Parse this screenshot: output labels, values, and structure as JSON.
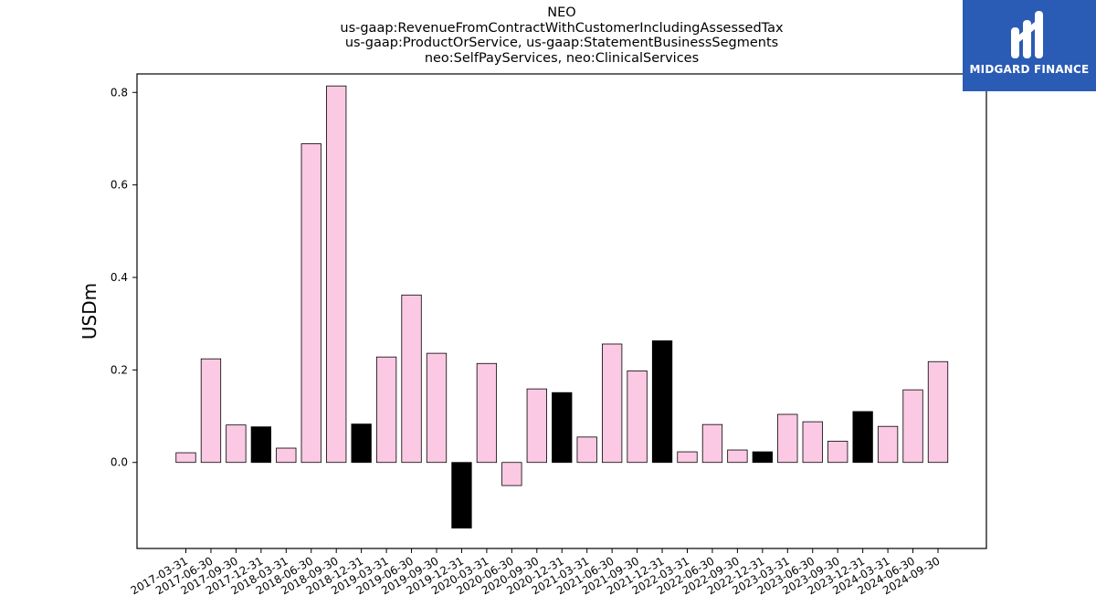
{
  "chart_data": {
    "type": "bar",
    "title_lines": [
      "NEO",
      "us-gaap:RevenueFromContractWithCustomerIncludingAssessedTax",
      "us-gaap:ProductOrService, us-gaap:StatementBusinessSegments",
      "neo:SelfPayServices, neo:ClinicalServices"
    ],
    "xlabel": "",
    "ylabel": "USDm",
    "ylim": [
      -0.186,
      0.84
    ],
    "yticks": [
      0.0,
      0.2,
      0.4,
      0.6,
      0.8
    ],
    "ytick_labels": [
      "0.0",
      "0.2",
      "0.4",
      "0.6",
      "0.8"
    ],
    "grid": false,
    "categories": [
      "2017-03-31",
      "2017-06-30",
      "2017-09-30",
      "2017-12-31",
      "2018-03-31",
      "2018-06-30",
      "2018-09-30",
      "2018-12-31",
      "2019-03-31",
      "2019-06-30",
      "2019-09-30",
      "2019-12-31",
      "2020-03-31",
      "2020-06-30",
      "2020-09-30",
      "2020-12-31",
      "2021-03-31",
      "2021-06-30",
      "2021-09-30",
      "2021-12-31",
      "2022-03-31",
      "2022-06-30",
      "2022-09-30",
      "2022-12-31",
      "2023-03-31",
      "2023-06-30",
      "2023-09-30",
      "2023-12-31",
      "2024-03-31",
      "2024-06-30",
      "2024-09-30"
    ],
    "values": [
      0.021,
      0.224,
      0.081,
      0.077,
      0.031,
      0.689,
      0.814,
      0.083,
      0.228,
      0.362,
      0.236,
      -0.142,
      0.214,
      -0.05,
      0.159,
      0.151,
      0.055,
      0.256,
      0.198,
      0.263,
      0.023,
      0.082,
      0.027,
      0.023,
      0.104,
      0.088,
      0.046,
      0.11,
      0.078,
      0.157,
      0.218
    ],
    "highlight": [
      false,
      false,
      false,
      true,
      false,
      false,
      false,
      true,
      false,
      false,
      false,
      true,
      false,
      false,
      false,
      true,
      false,
      false,
      false,
      true,
      false,
      false,
      false,
      true,
      false,
      false,
      false,
      true,
      false,
      false,
      false
    ],
    "colors": {
      "default": "#fbc9e3",
      "highlight": "#000000",
      "edge": "#000000"
    }
  },
  "logo": {
    "text": "MIDGARD FINANCE",
    "background": "#2a5bb5"
  }
}
